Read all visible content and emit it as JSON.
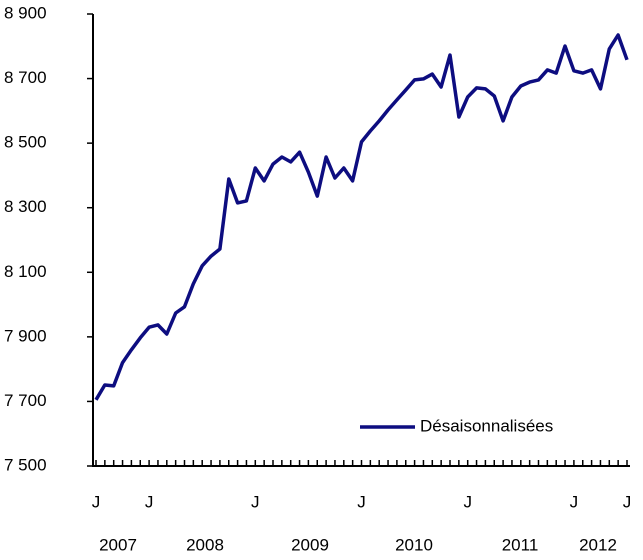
{
  "chart_data": {
    "type": "line",
    "categories": [
      "J",
      null,
      null,
      null,
      null,
      null,
      "J",
      null,
      null,
      null,
      null,
      null,
      null,
      null,
      null,
      null,
      null,
      null,
      "J",
      null,
      null,
      null,
      null,
      null,
      null,
      null,
      null,
      null,
      null,
      null,
      "J",
      null,
      null,
      null,
      null,
      null,
      null,
      null,
      null,
      null,
      null,
      null,
      "J",
      null,
      null,
      null,
      null,
      null,
      null,
      null,
      null,
      null,
      null,
      null,
      "J",
      null,
      null,
      null,
      null,
      null,
      "J"
    ],
    "year_labels": [
      "2007",
      "2008",
      "2009",
      "2010",
      "2011",
      "2012"
    ],
    "series": [
      {
        "name": "Désaisonnalisées",
        "color": "#0d0d80",
        "values": [
          7705,
          7751,
          7748,
          7820,
          7860,
          7897,
          7930,
          7937,
          7909,
          7974,
          7993,
          8064,
          8120,
          8150,
          8172,
          8389,
          8315,
          8321,
          8423,
          8383,
          8435,
          8457,
          8442,
          8472,
          8410,
          8336,
          8457,
          8392,
          8423,
          8383,
          8504,
          8538,
          8569,
          8603,
          8634,
          8665,
          8696,
          8699,
          8714,
          8674,
          8773,
          8581,
          8643,
          8671,
          8668,
          8646,
          8569,
          8643,
          8677,
          8689,
          8696,
          8727,
          8717,
          8801,
          8724,
          8717,
          8727,
          8668,
          8792,
          8835,
          8758
        ]
      }
    ],
    "ylim": [
      7500,
      8900
    ],
    "yticks": [
      {
        "value": 7500,
        "label": "7 500"
      },
      {
        "value": 7700,
        "label": "7 700"
      },
      {
        "value": 7900,
        "label": "7 900"
      },
      {
        "value": 8100,
        "label": "8 100"
      },
      {
        "value": 8300,
        "label": "8 300"
      },
      {
        "value": 8500,
        "label": "8 500"
      },
      {
        "value": 8700,
        "label": "8 700"
      },
      {
        "value": 8900,
        "label": "8 900"
      }
    ],
    "legend": "lower right"
  }
}
